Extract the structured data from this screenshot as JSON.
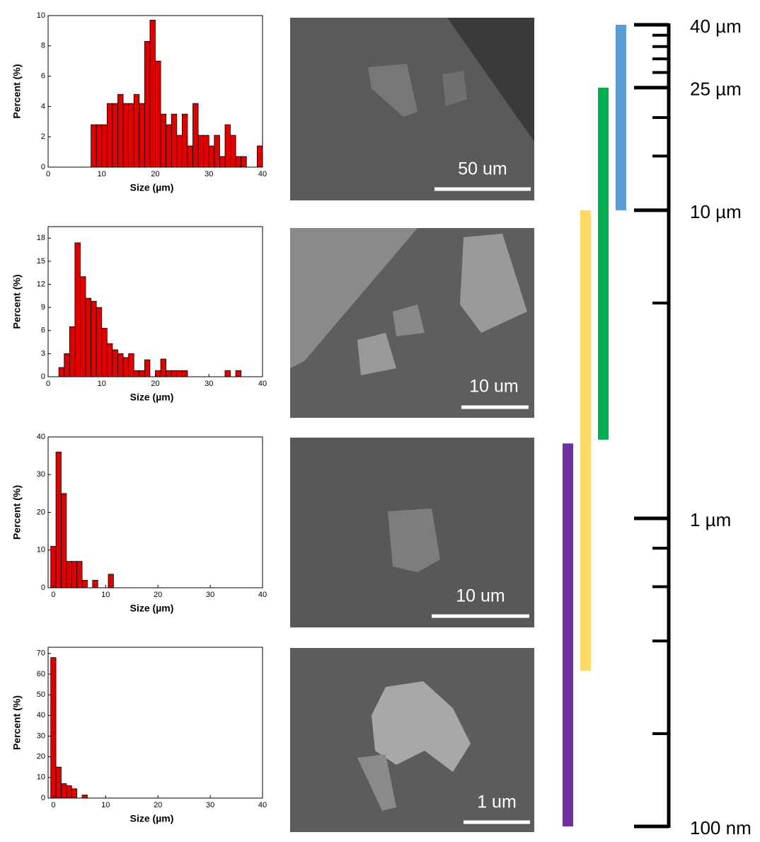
{
  "chart_data": [
    {
      "type": "histogram",
      "xlabel": "Size (µm)",
      "ylabel": "Percent (%)",
      "color": "#e00000",
      "bins": [
        8,
        9,
        10,
        11,
        12,
        13,
        14,
        15,
        16,
        17,
        18,
        19,
        20,
        21,
        22,
        23,
        24,
        25,
        26,
        27,
        28,
        29,
        30,
        31,
        32,
        33,
        34,
        35,
        36,
        37,
        38,
        39,
        40
      ],
      "values": [
        2.8,
        2.8,
        2.8,
        4.2,
        4.2,
        4.8,
        4.2,
        4.2,
        4.8,
        4.2,
        8.3,
        9.7,
        7.0,
        3.5,
        2.8,
        3.5,
        2.1,
        3.5,
        1.4,
        4.2,
        2.1,
        2.1,
        1.4,
        2.1,
        0.7,
        2.8,
        2.1,
        0.7,
        0.7,
        0,
        0,
        1.4
      ],
      "xlim": [
        0,
        40
      ],
      "xticks": [
        0,
        10,
        20,
        30,
        40
      ],
      "ylim": [
        0,
        10
      ],
      "yticks": [
        0,
        2,
        4,
        6,
        8,
        10
      ]
    },
    {
      "type": "histogram",
      "xlabel": "Size (µm)",
      "ylabel": "Percent (%)",
      "color": "#e00000",
      "bins": [
        2,
        3,
        4,
        5,
        6,
        7,
        8,
        9,
        10,
        11,
        12,
        13,
        14,
        15,
        16,
        17,
        18,
        19,
        20,
        21,
        22,
        23,
        24,
        25,
        26,
        27,
        28,
        29,
        30,
        31,
        32,
        33,
        34,
        35,
        36
      ],
      "values": [
        1.2,
        3,
        6.5,
        17.4,
        13,
        10.2,
        9.8,
        9,
        6.3,
        4.3,
        3.5,
        3,
        2.5,
        3,
        0.8,
        0.8,
        2.2,
        0,
        0.8,
        2.3,
        0.8,
        0.8,
        0.8,
        0.8,
        0,
        0,
        0,
        0,
        0,
        0,
        0,
        0.8,
        0,
        0.8
      ],
      "xlim": [
        0,
        40
      ],
      "xticks": [
        0,
        10,
        20,
        30,
        40
      ],
      "ylim": [
        0,
        19.5
      ],
      "yticks": [
        0,
        3,
        6,
        9,
        12,
        15,
        18
      ]
    },
    {
      "type": "histogram",
      "xlabel": "Size (µm)",
      "ylabel": "Percent (%)",
      "color": "#e00000",
      "bins": [
        -0.5,
        0.5,
        1.5,
        2.5,
        3.5,
        4.5,
        5.5,
        6.5,
        7.5,
        8.5,
        9.5,
        10.5,
        11.5
      ],
      "values": [
        11,
        36,
        25,
        7,
        7,
        7,
        2,
        0,
        2,
        0,
        0,
        3.6
      ],
      "xlim": [
        -1,
        40
      ],
      "xticks": [
        0,
        10,
        20,
        30,
        40
      ],
      "ylim": [
        0,
        40
      ],
      "yticks": [
        0,
        10,
        20,
        30,
        40
      ]
    },
    {
      "type": "histogram",
      "xlabel": "Size (µm)",
      "ylabel": "Percent (%)",
      "color": "#e00000",
      "bins": [
        -0.5,
        0.5,
        1.5,
        2.5,
        3.5,
        4.5,
        5.5,
        6.5
      ],
      "values": [
        68,
        15,
        7,
        6,
        4.5,
        0,
        1.5
      ],
      "xlim": [
        -1,
        40
      ],
      "xticks": [
        0,
        10,
        20,
        30,
        40
      ],
      "ylim": [
        0,
        73
      ],
      "yticks": [
        0,
        10,
        20,
        30,
        40,
        50,
        60,
        70
      ]
    },
    {
      "type": "range",
      "log": true,
      "ylim": [
        0.1,
        40
      ],
      "yticks": [
        {
          "value": 40,
          "label": "40 µm"
        },
        {
          "value": 25,
          "label": "25 µm"
        },
        {
          "value": 10,
          "label": "10 µm"
        },
        {
          "value": 1,
          "label": "1 µm"
        },
        {
          "value": 0.1,
          "label": "100 nm"
        }
      ],
      "minor_ticks": [
        37,
        34,
        31,
        28,
        20,
        15,
        5,
        0.8,
        0.6,
        0.4,
        0.2
      ],
      "series": [
        {
          "color": "#5b9bd5",
          "values": [
            10,
            40
          ]
        },
        {
          "color": "#00b050",
          "values": [
            1.8,
            25
          ]
        },
        {
          "color": "#ffd966",
          "values": [
            0.32,
            10
          ]
        },
        {
          "color": "#7030a0",
          "values": [
            0.1,
            1.75
          ]
        }
      ]
    }
  ],
  "images": [
    {
      "scale_label": "50 um"
    },
    {
      "scale_label": "10 um"
    },
    {
      "scale_label": "10 um"
    },
    {
      "scale_label": "1 um"
    }
  ]
}
